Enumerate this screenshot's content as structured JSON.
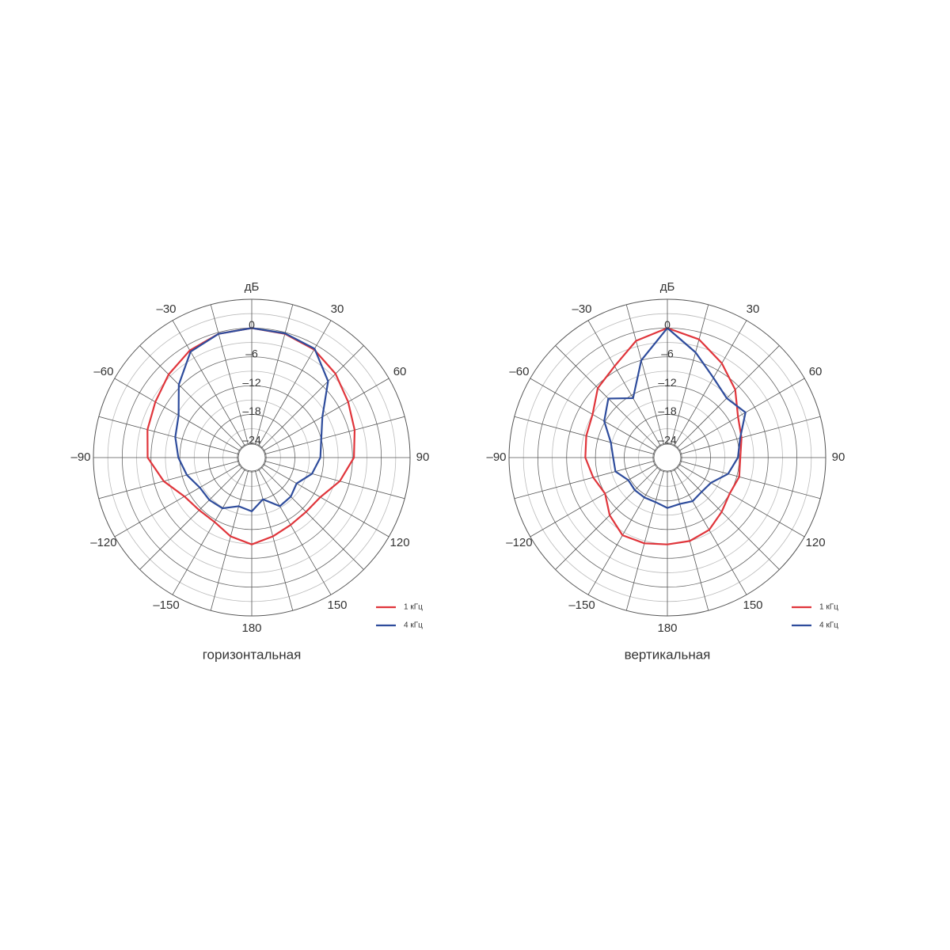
{
  "chart_data": [
    {
      "type": "polar",
      "title": "горизонтальная",
      "r_label": "дБ",
      "rlim": [
        -27,
        6
      ],
      "rgrid_step": 3,
      "thetagrid_step": 15,
      "rticks": [
        0,
        {
          "value": -6,
          "label": "–6"
        },
        {
          "value": -12,
          "label": "–12"
        },
        {
          "value": -18,
          "label": "–18"
        },
        {
          "value": -24,
          "label": "–24"
        }
      ],
      "thetaticks": [
        {
          "value": -30,
          "label": "–30"
        },
        30,
        {
          "value": -60,
          "label": "–60"
        },
        60,
        {
          "value": -90,
          "label": "–90"
        },
        90,
        {
          "value": -120,
          "label": "–120"
        },
        120,
        {
          "value": -150,
          "label": "–150"
        },
        150,
        180
      ],
      "theta": [
        -180,
        -165,
        -150,
        -135,
        -120,
        -105,
        -90,
        -75,
        -60,
        -45,
        -30,
        -15,
        0,
        15,
        30,
        45,
        60,
        75,
        90,
        105,
        120,
        135,
        150,
        165
      ],
      "series": [
        {
          "name": "1 кГц",
          "color": "#e0353b",
          "values": [
            -8.9,
            -10,
            -11.5,
            -11.5,
            -10.8,
            -8,
            -5.3,
            -4.5,
            -3.8,
            -2.5,
            -1.2,
            -0.3,
            0,
            -0.3,
            -1,
            -2.3,
            -3.8,
            -4.8,
            -5.7,
            -8,
            -10.5,
            -11,
            -10.8,
            -10
          ]
        },
        {
          "name": "4 кГц",
          "color": "#2e4c9c",
          "values": [
            -15.8,
            -16.5,
            -14.8,
            -14.5,
            -14.5,
            -13,
            -11.7,
            -10.5,
            -9.4,
            -5.5,
            -1.5,
            -0.3,
            0,
            -0.2,
            -0.8,
            -4.5,
            -10,
            -12,
            -12.7,
            -14,
            -16.2,
            -15.5,
            -15.3,
            -18
          ]
        }
      ]
    },
    {
      "type": "polar",
      "title": "вертикальная",
      "r_label": "дБ",
      "rlim": [
        -27,
        6
      ],
      "rgrid_step": 3,
      "thetagrid_step": 15,
      "rticks": [
        0,
        {
          "value": -6,
          "label": "–6"
        },
        {
          "value": -12,
          "label": "–12"
        },
        {
          "value": -18,
          "label": "–18"
        },
        {
          "value": -24,
          "label": "–24"
        }
      ],
      "thetaticks": [
        {
          "value": -30,
          "label": "–30"
        },
        30,
        {
          "value": -60,
          "label": "–60"
        },
        60,
        {
          "value": -90,
          "label": "–90"
        },
        90,
        {
          "value": -120,
          "label": "–120"
        },
        120,
        {
          "value": -150,
          "label": "–150"
        },
        150,
        180
      ],
      "theta": [
        -180,
        -165,
        -150,
        -135,
        -120,
        -105,
        -90,
        -75,
        -60,
        -45,
        -30,
        -15,
        0,
        15,
        30,
        45,
        60,
        75,
        90,
        105,
        120,
        135,
        150,
        165
      ],
      "series": [
        {
          "name": "1 кГц",
          "color": "#e0353b",
          "values": [
            -8.9,
            -8.5,
            -8.3,
            -10,
            -12,
            -11,
            -9.9,
            -9.5,
            -9,
            -6.5,
            -5,
            -1.8,
            0,
            -1.5,
            -4.3,
            -7,
            -10,
            -11,
            -11.8,
            -11.5,
            -12,
            -11,
            -9.6,
            -9
          ]
        },
        {
          "name": "4 кГц",
          "color": "#2e4c9c",
          "values": [
            -16.5,
            -17.4,
            -17.4,
            -17.4,
            -17.6,
            -15.8,
            -15.7,
            -14.8,
            -11.8,
            -9.6,
            -12.7,
            -6,
            0,
            -4.3,
            -7.8,
            -9.5,
            -8.2,
            -11.3,
            -12.3,
            -13.9,
            -16.5,
            -16.9,
            -16.5,
            -17
          ]
        }
      ]
    }
  ]
}
